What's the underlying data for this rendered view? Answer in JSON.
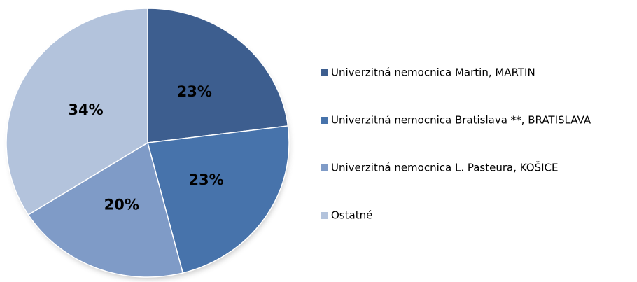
{
  "chart_data": {
    "type": "pie",
    "categories": [
      "Univerzitná nemocnica Martin, MARTIN",
      "Univerzitná nemocnica  Bratislava **, BRATISLAVA",
      "Univerzitná nemocnica L. Pasteura, KOŠICE",
      "Ostatné"
    ],
    "values": [
      23,
      23,
      20,
      34
    ],
    "value_labels": [
      "23%",
      "23%",
      "20%",
      "34%"
    ],
    "colors": [
      "#3d5e8f",
      "#4773ab",
      "#7f9bc7",
      "#b3c3dc"
    ],
    "legend": "right"
  }
}
